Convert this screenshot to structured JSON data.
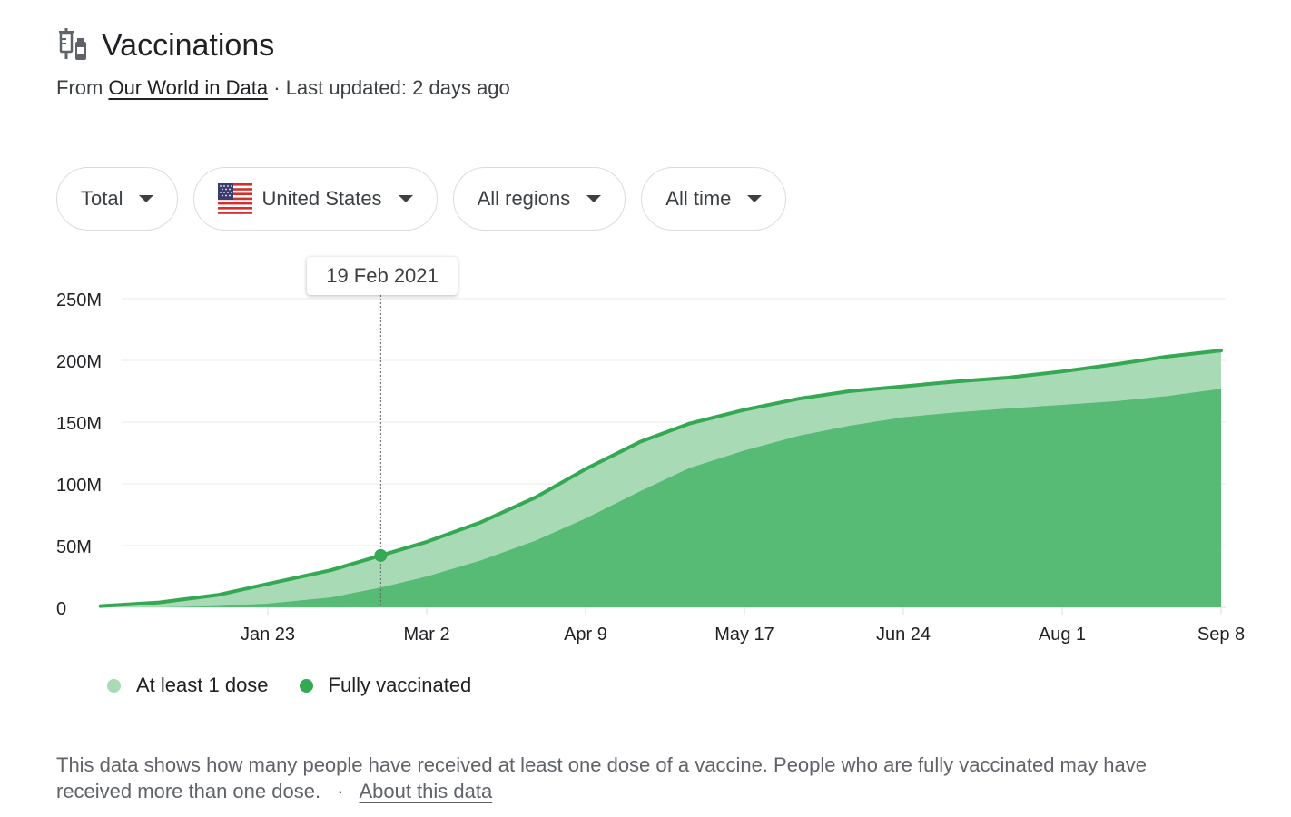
{
  "header": {
    "icon": "vaccine-syringe-icon",
    "title": "Vaccinations",
    "source_prefix": "From",
    "source_link": "Our World in Data",
    "separator": "·",
    "updated": "Last updated: 2 days ago"
  },
  "filters": [
    {
      "label": "Total",
      "icon": "chevron-down-icon"
    },
    {
      "label": "United States",
      "flag": "us-flag-icon",
      "icon": "chevron-down-icon"
    },
    {
      "label": "All regions",
      "icon": "chevron-down-icon"
    },
    {
      "label": "All time",
      "icon": "chevron-down-icon"
    }
  ],
  "tooltip": {
    "label": "19 Feb 2021"
  },
  "chart_data": {
    "type": "area",
    "y_ticks": [
      "250M",
      "200M",
      "150M",
      "100M",
      "50M",
      "0"
    ],
    "x_ticks": [
      "Jan 23",
      "Mar 2",
      "Apr 9",
      "May 17",
      "Jun 24",
      "Aug 1",
      "Sep 8"
    ],
    "ylim": [
      0,
      250
    ],
    "grid": true,
    "legend_position": "bottom-left",
    "x": [
      "2020-12-14",
      "2020-12-28",
      "2021-01-11",
      "2021-01-23",
      "2021-02-07",
      "2021-02-19",
      "2021-03-02",
      "2021-03-15",
      "2021-03-28",
      "2021-04-09",
      "2021-04-22",
      "2021-05-04",
      "2021-05-17",
      "2021-05-30",
      "2021-06-11",
      "2021-06-24",
      "2021-07-07",
      "2021-07-19",
      "2021-08-01",
      "2021-08-14",
      "2021-08-26",
      "2021-09-08"
    ],
    "series": [
      {
        "name": "At least 1 dose",
        "color": "#a8dab5",
        "values": [
          1,
          4,
          10,
          19,
          30,
          42,
          53,
          69,
          89,
          112,
          134,
          149,
          160,
          169,
          175,
          179,
          183,
          186,
          191,
          197,
          203,
          208
        ]
      },
      {
        "name": "Fully vaccinated",
        "color": "#57bb75",
        "values": [
          0,
          0,
          1,
          3,
          8,
          16,
          25,
          38,
          54,
          72,
          94,
          113,
          127,
          139,
          147,
          154,
          158,
          161,
          164,
          167,
          171,
          177
        ]
      }
    ],
    "line_color": "#34a853",
    "highlight": {
      "x": "2021-02-19",
      "value": 42
    }
  },
  "footer": {
    "text": "This data shows how many people have received at least one dose of a vaccine. People who are fully vaccinated may have received more than one dose.",
    "separator": "·",
    "link": "About this data"
  }
}
